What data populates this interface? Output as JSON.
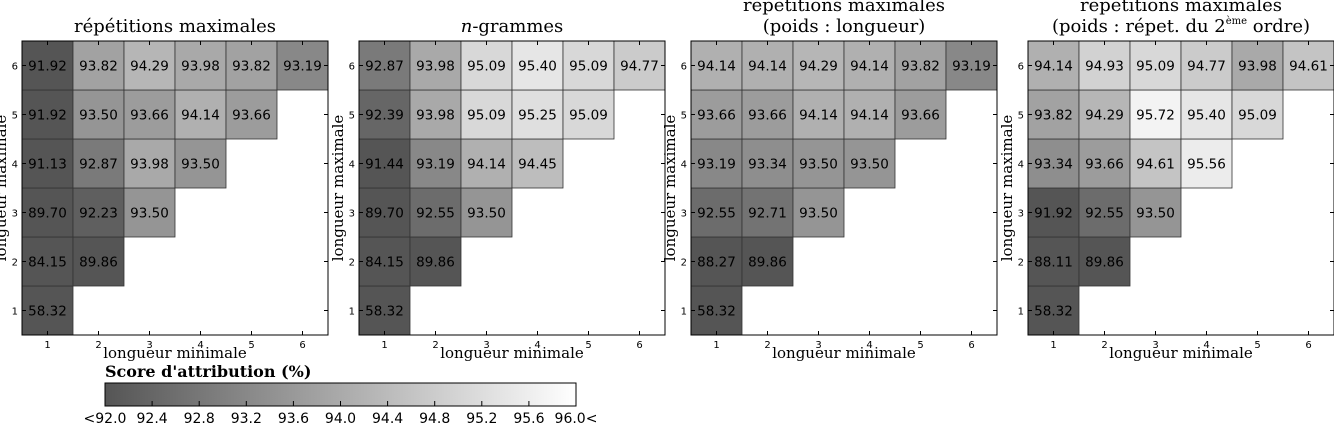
{
  "chart_data": [
    {
      "type": "heatmap",
      "title": "répétitions maximales",
      "xlabel": "longueur minimale",
      "ylabel": "longueur maximale",
      "x_ticks": [
        "1",
        "2",
        "3",
        "4",
        "5",
        "6"
      ],
      "y_ticks": [
        "1",
        "2",
        "3",
        "4",
        "5",
        "6"
      ],
      "cells": [
        {
          "min": 1,
          "max": 1,
          "value": 58.32,
          "label": "58.32"
        },
        {
          "min": 1,
          "max": 2,
          "value": 84.15,
          "label": "84.15"
        },
        {
          "min": 2,
          "max": 2,
          "value": 89.86,
          "label": "89.86"
        },
        {
          "min": 1,
          "max": 3,
          "value": 89.7,
          "label": "89.70"
        },
        {
          "min": 2,
          "max": 3,
          "value": 92.23,
          "label": "92.23"
        },
        {
          "min": 3,
          "max": 3,
          "value": 93.5,
          "label": "93.50"
        },
        {
          "min": 1,
          "max": 4,
          "value": 91.13,
          "label": "91.13"
        },
        {
          "min": 2,
          "max": 4,
          "value": 92.87,
          "label": "92.87"
        },
        {
          "min": 3,
          "max": 4,
          "value": 93.98,
          "label": "93.98"
        },
        {
          "min": 4,
          "max": 4,
          "value": 93.5,
          "label": "93.50"
        },
        {
          "min": 1,
          "max": 5,
          "value": 91.92,
          "label": "91.92"
        },
        {
          "min": 2,
          "max": 5,
          "value": 93.5,
          "label": "93.50"
        },
        {
          "min": 3,
          "max": 5,
          "value": 93.66,
          "label": "93.66"
        },
        {
          "min": 4,
          "max": 5,
          "value": 94.14,
          "label": "94.14"
        },
        {
          "min": 5,
          "max": 5,
          "value": 93.66,
          "label": "93.66"
        },
        {
          "min": 1,
          "max": 6,
          "value": 91.92,
          "label": "91.92"
        },
        {
          "min": 2,
          "max": 6,
          "value": 93.82,
          "label": "93.82"
        },
        {
          "min": 3,
          "max": 6,
          "value": 94.29,
          "label": "94.29"
        },
        {
          "min": 4,
          "max": 6,
          "value": 93.98,
          "label": "93.98"
        },
        {
          "min": 5,
          "max": 6,
          "value": 93.82,
          "label": "93.82"
        },
        {
          "min": 6,
          "max": 6,
          "value": 93.19,
          "label": "93.19"
        }
      ]
    },
    {
      "type": "heatmap",
      "title": "n-grammes",
      "xlabel": "longueur minimale",
      "ylabel": "longueur maximale",
      "x_ticks": [
        "1",
        "2",
        "3",
        "4",
        "5",
        "6"
      ],
      "y_ticks": [
        "1",
        "2",
        "3",
        "4",
        "5",
        "6"
      ],
      "cells": [
        {
          "min": 1,
          "max": 1,
          "value": 58.32,
          "label": "58.32"
        },
        {
          "min": 1,
          "max": 2,
          "value": 84.15,
          "label": "84.15"
        },
        {
          "min": 2,
          "max": 2,
          "value": 89.86,
          "label": "89.86"
        },
        {
          "min": 1,
          "max": 3,
          "value": 89.7,
          "label": "89.70"
        },
        {
          "min": 2,
          "max": 3,
          "value": 92.55,
          "label": "92.55"
        },
        {
          "min": 3,
          "max": 3,
          "value": 93.5,
          "label": "93.50"
        },
        {
          "min": 1,
          "max": 4,
          "value": 91.44,
          "label": "91.44"
        },
        {
          "min": 2,
          "max": 4,
          "value": 93.19,
          "label": "93.19"
        },
        {
          "min": 3,
          "max": 4,
          "value": 94.14,
          "label": "94.14"
        },
        {
          "min": 4,
          "max": 4,
          "value": 94.45,
          "label": "94.45"
        },
        {
          "min": 1,
          "max": 5,
          "value": 92.39,
          "label": "92.39"
        },
        {
          "min": 2,
          "max": 5,
          "value": 93.98,
          "label": "93.98"
        },
        {
          "min": 3,
          "max": 5,
          "value": 95.09,
          "label": "95.09"
        },
        {
          "min": 4,
          "max": 5,
          "value": 95.25,
          "label": "95.25"
        },
        {
          "min": 5,
          "max": 5,
          "value": 95.09,
          "label": "95.09"
        },
        {
          "min": 1,
          "max": 6,
          "value": 92.87,
          "label": "92.87"
        },
        {
          "min": 2,
          "max": 6,
          "value": 93.98,
          "label": "93.98"
        },
        {
          "min": 3,
          "max": 6,
          "value": 95.09,
          "label": "95.09"
        },
        {
          "min": 4,
          "max": 6,
          "value": 95.4,
          "label": "95.40"
        },
        {
          "min": 5,
          "max": 6,
          "value": 95.09,
          "label": "95.09"
        },
        {
          "min": 6,
          "max": 6,
          "value": 94.77,
          "label": "94.77"
        }
      ]
    },
    {
      "type": "heatmap",
      "title": "répétitions maximales",
      "subtitle": "(poids : longueur)",
      "xlabel": "longueur minimale",
      "ylabel": "longueur maximale",
      "x_ticks": [
        "1",
        "2",
        "3",
        "4",
        "5",
        "6"
      ],
      "y_ticks": [
        "1",
        "2",
        "3",
        "4",
        "5",
        "6"
      ],
      "cells": [
        {
          "min": 1,
          "max": 1,
          "value": 58.32,
          "label": "58.32"
        },
        {
          "min": 1,
          "max": 2,
          "value": 88.27,
          "label": "88.27"
        },
        {
          "min": 2,
          "max": 2,
          "value": 89.86,
          "label": "89.86"
        },
        {
          "min": 1,
          "max": 3,
          "value": 92.55,
          "label": "92.55"
        },
        {
          "min": 2,
          "max": 3,
          "value": 92.71,
          "label": "92.71"
        },
        {
          "min": 3,
          "max": 3,
          "value": 93.5,
          "label": "93.50"
        },
        {
          "min": 1,
          "max": 4,
          "value": 93.19,
          "label": "93.19"
        },
        {
          "min": 2,
          "max": 4,
          "value": 93.34,
          "label": "93.34"
        },
        {
          "min": 3,
          "max": 4,
          "value": 93.5,
          "label": "93.50"
        },
        {
          "min": 4,
          "max": 4,
          "value": 93.5,
          "label": "93.50"
        },
        {
          "min": 1,
          "max": 5,
          "value": 93.66,
          "label": "93.66"
        },
        {
          "min": 2,
          "max": 5,
          "value": 93.66,
          "label": "93.66"
        },
        {
          "min": 3,
          "max": 5,
          "value": 94.14,
          "label": "94.14"
        },
        {
          "min": 4,
          "max": 5,
          "value": 94.14,
          "label": "94.14"
        },
        {
          "min": 5,
          "max": 5,
          "value": 93.66,
          "label": "93.66"
        },
        {
          "min": 1,
          "max": 6,
          "value": 94.14,
          "label": "94.14"
        },
        {
          "min": 2,
          "max": 6,
          "value": 94.14,
          "label": "94.14"
        },
        {
          "min": 3,
          "max": 6,
          "value": 94.29,
          "label": "94.29"
        },
        {
          "min": 4,
          "max": 6,
          "value": 94.14,
          "label": "94.14"
        },
        {
          "min": 5,
          "max": 6,
          "value": 93.82,
          "label": "93.82"
        },
        {
          "min": 6,
          "max": 6,
          "value": 93.19,
          "label": "93.19"
        }
      ]
    },
    {
      "type": "heatmap",
      "title": "répétitions maximales",
      "subtitle_prefix": "(poids : répet. du 2",
      "subtitle_sup": "ème",
      "subtitle_suffix": " ordre)",
      "xlabel": "longueur minimale",
      "ylabel": "longueur maximale",
      "x_ticks": [
        "1",
        "2",
        "3",
        "4",
        "5",
        "6"
      ],
      "y_ticks": [
        "1",
        "2",
        "3",
        "4",
        "5",
        "6"
      ],
      "cells": [
        {
          "min": 1,
          "max": 1,
          "value": 58.32,
          "label": "58.32"
        },
        {
          "min": 1,
          "max": 2,
          "value": 88.11,
          "label": "88.11"
        },
        {
          "min": 2,
          "max": 2,
          "value": 89.86,
          "label": "89.86"
        },
        {
          "min": 1,
          "max": 3,
          "value": 91.92,
          "label": "91.92"
        },
        {
          "min": 2,
          "max": 3,
          "value": 92.55,
          "label": "92.55"
        },
        {
          "min": 3,
          "max": 3,
          "value": 93.5,
          "label": "93.50"
        },
        {
          "min": 1,
          "max": 4,
          "value": 93.34,
          "label": "93.34"
        },
        {
          "min": 2,
          "max": 4,
          "value": 93.66,
          "label": "93.66"
        },
        {
          "min": 3,
          "max": 4,
          "value": 94.61,
          "label": "94.61"
        },
        {
          "min": 4,
          "max": 4,
          "value": 95.56,
          "label": "95.56"
        },
        {
          "min": 1,
          "max": 5,
          "value": 93.82,
          "label": "93.82"
        },
        {
          "min": 2,
          "max": 5,
          "value": 94.29,
          "label": "94.29"
        },
        {
          "min": 3,
          "max": 5,
          "value": 95.72,
          "label": "95.72"
        },
        {
          "min": 4,
          "max": 5,
          "value": 95.4,
          "label": "95.40"
        },
        {
          "min": 5,
          "max": 5,
          "value": 95.09,
          "label": "95.09"
        },
        {
          "min": 1,
          "max": 6,
          "value": 94.14,
          "label": "94.14"
        },
        {
          "min": 2,
          "max": 6,
          "value": 94.93,
          "label": "94.93"
        },
        {
          "min": 3,
          "max": 6,
          "value": 95.09,
          "label": "95.09"
        },
        {
          "min": 4,
          "max": 6,
          "value": 94.77,
          "label": "94.77"
        },
        {
          "min": 5,
          "max": 6,
          "value": 93.98,
          "label": "93.98"
        },
        {
          "min": 6,
          "max": 6,
          "value": 94.61,
          "label": "94.61"
        }
      ]
    }
  ],
  "colorbar": {
    "title": "Score d'attribution (%)",
    "min": 92.0,
    "max": 96.0,
    "tick_labels": [
      "<92.0",
      "92.4",
      "92.8",
      "93.2",
      "93.6",
      "94.0",
      "94.4",
      "94.8",
      "95.2",
      "95.6",
      "96.0<"
    ],
    "color_low": "#555555",
    "color_high": "#ffffff"
  }
}
